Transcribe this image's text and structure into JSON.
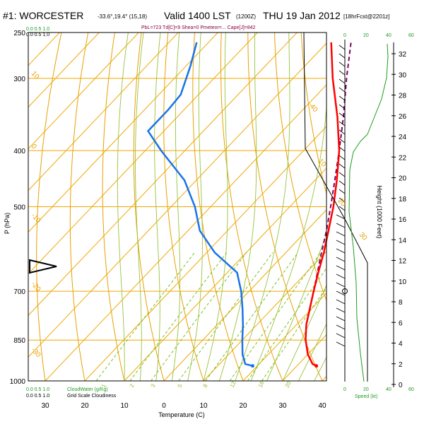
{
  "header": {
    "station": "#1: WORCESTER",
    "coords": "-33.6°,19.4° (15,18)",
    "valid": "Valid 1400 LST",
    "utc": "(1200Z)",
    "date": "THU 19 Jan 2012",
    "forecast": "[18hrFcst@2201z]",
    "indices": "PbL=723 Td[C]=9 Shea=0 Pmeteor=... Cape[J]=842"
  },
  "legend": {
    "cloud_top_label": "0.0  0.5  1.0",
    "cloud_bottom_left": "0.0  0.5  1.0",
    "cloud_water_label": "CloudWater (g/Kg)",
    "grid_cloud_label": "Grid Scale Cloudiness",
    "speed_label": "Speed (kt)",
    "speed_ticks": [
      "0",
      "20",
      "40",
      "60"
    ]
  },
  "colors": {
    "isotherm": "#f0a800",
    "dry_adiabat": "#e8a000",
    "moist_adiabat": "#99c23a",
    "mixing_ratio": "#7cc020",
    "temperature": "#ff0000",
    "dewpoint": "#1a73e8",
    "parcel": "#800060",
    "wind_profile": "#1e9b1e"
  },
  "chart_data": {
    "type": "skew-t",
    "xlabel": "Temperature (C)",
    "ylabel": "P (hPa)",
    "right_ylabel": "Height (1000 Feet)",
    "x_ticks": [
      -30,
      -20,
      -10,
      0,
      10,
      20,
      30,
      40
    ],
    "x_tick_labels": [
      "30",
      "20",
      "10",
      "0",
      "10",
      "20",
      "30",
      "40"
    ],
    "p_ticks": [
      250,
      300,
      400,
      500,
      700,
      850,
      1000
    ],
    "height_ticks": [
      0,
      2,
      4,
      6,
      8,
      10,
      12,
      14,
      16,
      18,
      20,
      22,
      24,
      26,
      28,
      30,
      32
    ],
    "mixing_ratio_labels": [
      "1",
      "2",
      "3",
      "5",
      "8",
      "12",
      "16",
      "20"
    ],
    "adiabat_labels": [
      "10",
      "0",
      "-10",
      "-20",
      "-30",
      "-40",
      "10",
      "20",
      "30"
    ],
    "temperature": [
      {
        "p": 942,
        "t": 34.9
      },
      {
        "p": 935,
        "t": 33.5
      },
      {
        "p": 900,
        "t": 30.0
      },
      {
        "p": 850,
        "t": 26.0
      },
      {
        "p": 800,
        "t": 22.5
      },
      {
        "p": 750,
        "t": 19.5
      },
      {
        "p": 700,
        "t": 16.3
      },
      {
        "p": 650,
        "t": 13.0
      },
      {
        "p": 600,
        "t": 9.6
      },
      {
        "p": 550,
        "t": 5.5
      },
      {
        "p": 500,
        "t": 1.0
      },
      {
        "p": 450,
        "t": -4.5
      },
      {
        "p": 400,
        "t": -11.0
      },
      {
        "p": 350,
        "t": -19.5
      },
      {
        "p": 300,
        "t": -30.0
      },
      {
        "p": 260,
        "t": -39.0
      }
    ],
    "dewpoint": [
      {
        "p": 942,
        "t": 18.8
      },
      {
        "p": 935,
        "t": 16.5
      },
      {
        "p": 900,
        "t": 13.5
      },
      {
        "p": 850,
        "t": 10.0
      },
      {
        "p": 800,
        "t": 6.5
      },
      {
        "p": 750,
        "t": 2.5
      },
      {
        "p": 700,
        "t": -2.0
      },
      {
        "p": 650,
        "t": -7.5
      },
      {
        "p": 600,
        "t": -18.0
      },
      {
        "p": 550,
        "t": -27.0
      },
      {
        "p": 500,
        "t": -34.0
      },
      {
        "p": 450,
        "t": -43.0
      },
      {
        "p": 400,
        "t": -56.0
      },
      {
        "p": 370,
        "t": -64.0
      },
      {
        "p": 340,
        "t": -64.0
      },
      {
        "p": 320,
        "t": -64.5
      },
      {
        "p": 300,
        "t": -67.0
      },
      {
        "p": 285,
        "t": -69.0
      },
      {
        "p": 260,
        "t": -73.0
      }
    ],
    "parcel": [
      {
        "p": 700,
        "t": 16.3
      },
      {
        "p": 650,
        "t": 12.8
      },
      {
        "p": 600,
        "t": 9.0
      },
      {
        "p": 550,
        "t": 5.0
      },
      {
        "p": 500,
        "t": 0.3
      },
      {
        "p": 450,
        "t": -5.0
      },
      {
        "p": 400,
        "t": -11.0
      },
      {
        "p": 350,
        "t": -18.0
      },
      {
        "p": 300,
        "t": -26.5
      },
      {
        "p": 260,
        "t": -34.0
      }
    ]
  }
}
